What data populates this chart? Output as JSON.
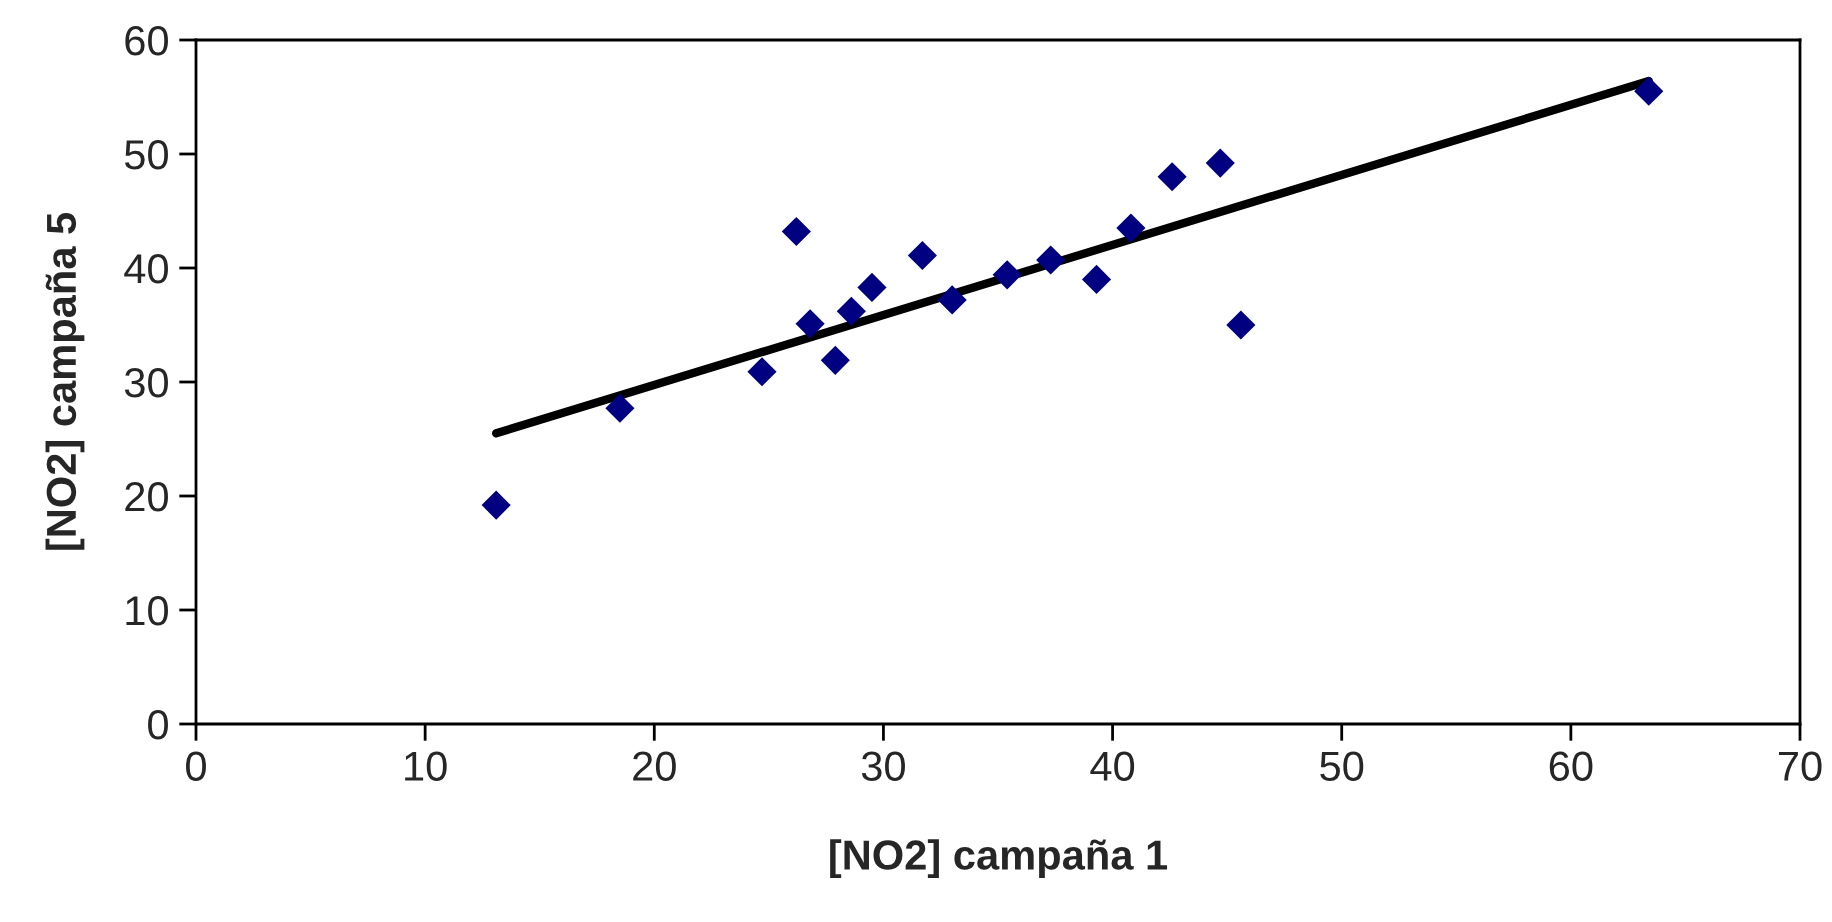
{
  "chart_data": {
    "type": "scatter",
    "xlabel": "[NO2] campaña 1",
    "ylabel": "[NO2] campaña 5",
    "xlim": [
      0,
      70
    ],
    "xticks": [
      0,
      10,
      20,
      30,
      40,
      50,
      60,
      70
    ],
    "ylim": [
      0,
      60
    ],
    "yticks": [
      0,
      10,
      20,
      30,
      40,
      50,
      60
    ],
    "grid": false,
    "legend": false,
    "series": [
      {
        "marker": "diamond",
        "color": "#000080",
        "x": [
          13.1,
          18.5,
          24.7,
          26.2,
          26.8,
          27.9,
          28.6,
          29.5,
          31.7,
          33.0,
          35.4,
          37.3,
          39.3,
          40.8,
          42.6,
          44.7,
          45.6,
          63.4
        ],
        "values": [
          19.2,
          27.7,
          30.9,
          43.2,
          35.1,
          31.9,
          36.2,
          38.3,
          41.1,
          37.2,
          39.4,
          40.7,
          39.0,
          43.5,
          48.0,
          49.2,
          35.0,
          55.5
        ]
      },
      {
        "type": "line",
        "line_style": "solid",
        "color": "#000000",
        "x": [
          13.1,
          63.4
        ],
        "values": [
          25.5,
          56.4
        ]
      }
    ]
  }
}
